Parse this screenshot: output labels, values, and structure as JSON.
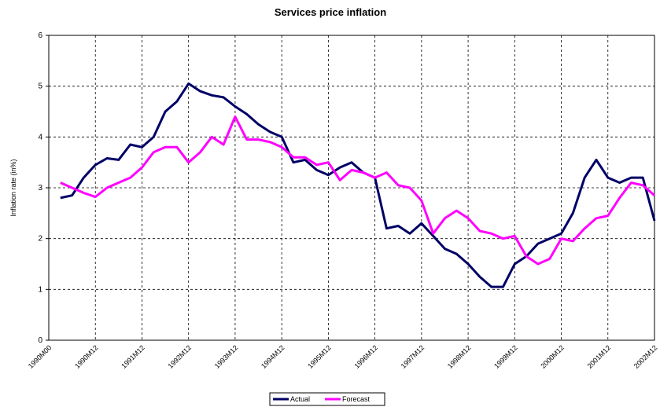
{
  "chart_data": {
    "type": "line",
    "title": "Services price inflation",
    "y_label": "Inflation rate (in%)",
    "categories": [
      "1990M00",
      null,
      null,
      null,
      "1990M12",
      null,
      null,
      null,
      "1991M12",
      null,
      null,
      null,
      "1992M12",
      null,
      null,
      null,
      "1993M12",
      null,
      null,
      null,
      "1994M12",
      null,
      null,
      null,
      "1995M12",
      null,
      null,
      null,
      "1996M12",
      null,
      null,
      null,
      "1997M12",
      null,
      null,
      null,
      "1998M12",
      null,
      null,
      null,
      "1999M12",
      null,
      null,
      null,
      "2000M12",
      null,
      null,
      null,
      "2001M12",
      null,
      null,
      null,
      "2002M12"
    ],
    "series": [
      {
        "name": "Actual",
        "color": "#000066",
        "values": [
          null,
          2.8,
          2.85,
          3.2,
          3.45,
          3.58,
          3.55,
          3.85,
          3.8,
          4.0,
          4.5,
          4.7,
          5.05,
          4.9,
          4.82,
          4.78,
          4.6,
          4.45,
          4.25,
          4.1,
          4.0,
          3.5,
          3.55,
          3.35,
          3.25,
          3.4,
          3.5,
          3.3,
          3.2,
          2.2,
          2.25,
          2.1,
          2.3,
          2.05,
          1.8,
          1.7,
          1.5,
          1.25,
          1.05,
          1.05,
          1.5,
          1.65,
          1.9,
          2.0,
          2.1,
          2.5,
          3.2,
          3.55,
          3.2,
          3.1,
          3.2,
          3.2,
          2.35
        ]
      },
      {
        "name": "Forecast",
        "color": "#ff00ff",
        "values": [
          null,
          3.1,
          3.0,
          2.9,
          2.82,
          3.0,
          3.1,
          3.2,
          3.4,
          3.7,
          3.8,
          3.8,
          3.5,
          3.7,
          4.0,
          3.85,
          4.4,
          3.95,
          3.95,
          3.9,
          3.8,
          3.6,
          3.6,
          3.45,
          3.5,
          3.15,
          3.35,
          3.3,
          3.2,
          3.3,
          3.05,
          3.0,
          2.75,
          2.1,
          2.4,
          2.55,
          2.4,
          2.15,
          2.1,
          2.0,
          2.05,
          1.65,
          1.5,
          1.6,
          2.0,
          1.95,
          2.2,
          2.4,
          2.45,
          2.8,
          3.1,
          3.05,
          2.85
        ]
      }
    ],
    "ylim": [
      0,
      6
    ],
    "yticks": [
      0,
      1,
      2,
      3,
      4,
      5,
      6
    ],
    "grid": true
  }
}
